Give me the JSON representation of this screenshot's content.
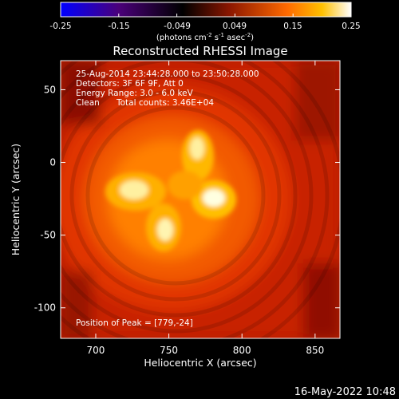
{
  "colorbar": {
    "tick_labels": [
      "-0.25",
      "-0.15",
      "-0.049",
      "0.049",
      "0.15",
      "0.25"
    ],
    "units": {
      "base": "(photons cm",
      "exp1": "-2",
      "mid1": " s",
      "exp2": "-1",
      "mid2": " asec",
      "exp3": "-2",
      "end": ")"
    },
    "colors": [
      "#0000ff",
      "#4a007a",
      "#000000",
      "#8a1600",
      "#ff6a00",
      "#ffc000",
      "#ffffff"
    ]
  },
  "image": {
    "title": "Reconstructed RHESSI Image",
    "overlay": {
      "time_range": "25-Aug-2014 23:44:28.000 to 23:50:28.000",
      "detectors": "Detectors: 3F 6F 9F, Att 0",
      "energy_range": "Energy Range: 3.0 - 6.0 keV",
      "clean_label": "Clean",
      "total_counts": "Total counts: 3.46E+04",
      "peak_position": "Position of Peak = [779,-24]"
    },
    "peak_arcsec": [
      779,
      -24
    ]
  },
  "axes": {
    "xlabel": "Heliocentric X (arcsec)",
    "ylabel": "Heliocentric Y (arcsec)",
    "x_range": [
      676,
      867
    ],
    "y_range": [
      -121,
      70
    ],
    "x_ticks": [
      "700",
      "750",
      "800",
      "850"
    ],
    "y_ticks": [
      "50",
      "0",
      "-50",
      "-100"
    ],
    "x_tick_values": [
      700,
      750,
      800,
      850
    ],
    "y_tick_values": [
      50,
      0,
      -50,
      -100
    ]
  },
  "footer": {
    "timestamp": "16-May-2022 10:48"
  }
}
